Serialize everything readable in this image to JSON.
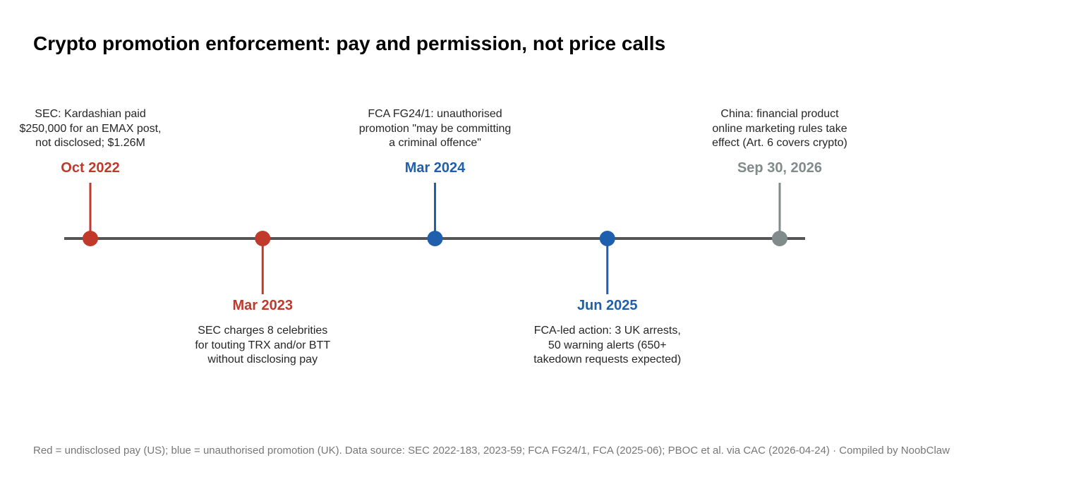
{
  "title": "Crypto promotion enforcement: pay and permission, not price calls",
  "colors": {
    "us_pay": "#C0392B",
    "uk_permission": "#1F5FAD",
    "upcoming": "#808B8A",
    "axis": "#555555"
  },
  "events": [
    {
      "date": "Oct 2022",
      "description": "SEC: Kardashian paid\n$250,000 for an EMAX post,\nnot disclosed; $1.26M",
      "category": "us_pay",
      "position": "above"
    },
    {
      "date": "Mar 2023",
      "description": "SEC charges 8 celebrities\nfor touting TRX and/or BTT\nwithout disclosing pay",
      "category": "us_pay",
      "position": "below"
    },
    {
      "date": "Mar 2024",
      "description": "FCA FG24/1: unauthorised\npromotion \"may be committing\na criminal offence\"",
      "category": "uk_permission",
      "position": "above"
    },
    {
      "date": "Jun 2025",
      "description": "FCA-led action: 3 UK arrests,\n50 warning alerts (650+\ntakedown requests expected)",
      "category": "uk_permission",
      "position": "below"
    },
    {
      "date": "Sep 30, 2026",
      "description": "China: financial product\nonline marketing rules take\neffect (Art. 6 covers crypto)",
      "category": "upcoming",
      "position": "above"
    }
  ],
  "footer": "Red = undisclosed pay (US); blue = unauthorised promotion (UK). Data source: SEC 2022-183, 2023-59; FCA FG24/1, FCA (2025-06); PBOC et al. via CAC (2026-04-24) · Compiled by NoobClaw"
}
